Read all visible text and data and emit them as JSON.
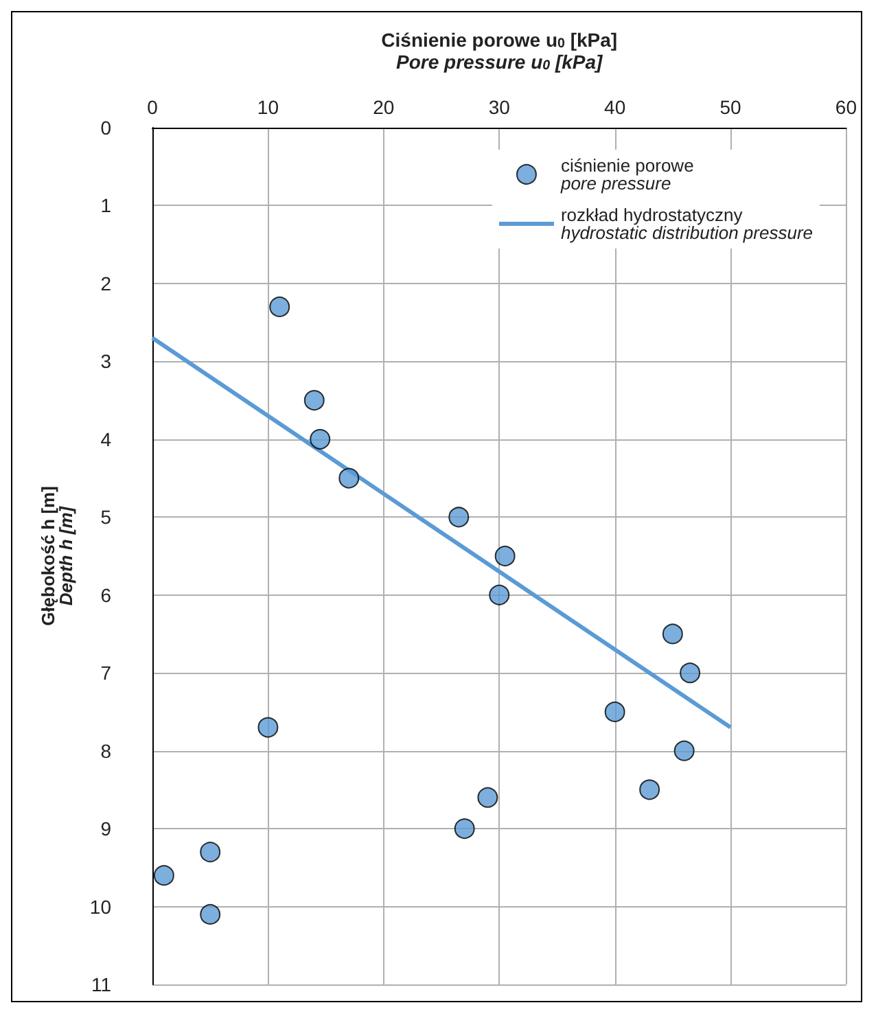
{
  "chart_data": {
    "type": "scatter",
    "xlabel": "Ciśnienie porowe u$_{0}$ [kPa]\nPore pressure u$_{0}$ [kPa]",
    "ylabel": "Głębokość h [m]\nDepth h [m]",
    "xlim": [
      0,
      60
    ],
    "xticks": [
      0,
      10,
      20,
      30,
      40,
      50,
      60
    ],
    "ylim": [
      11,
      0
    ],
    "yticks": [
      0,
      1,
      2,
      3,
      4,
      5,
      6,
      7,
      8,
      9,
      10,
      11
    ],
    "grid": true,
    "legend": "top right",
    "marker": "circle",
    "series": [
      {
        "name": "ciśnienie porowe\npore pressure",
        "color": "#5b9bd5",
        "x": [
          11,
          14,
          14.5,
          17,
          26.5,
          30.5,
          30,
          45,
          46.5,
          40,
          46,
          43,
          29,
          27,
          10,
          5,
          1,
          5
        ],
        "values": [
          2.3,
          3.5,
          4.0,
          4.5,
          5.0,
          5.5,
          6.0,
          6.5,
          7.0,
          7.5,
          8.0,
          8.5,
          8.6,
          9.0,
          7.7,
          9.3,
          9.6,
          10.1
        ]
      },
      {
        "name": "rozkład hydrostatyczny\nhydrostatic distribution pressure",
        "type": "line",
        "color": "#5b9bd5",
        "marker": "none",
        "x": [
          0,
          50
        ],
        "values": [
          2.7,
          7.7
        ]
      }
    ]
  }
}
